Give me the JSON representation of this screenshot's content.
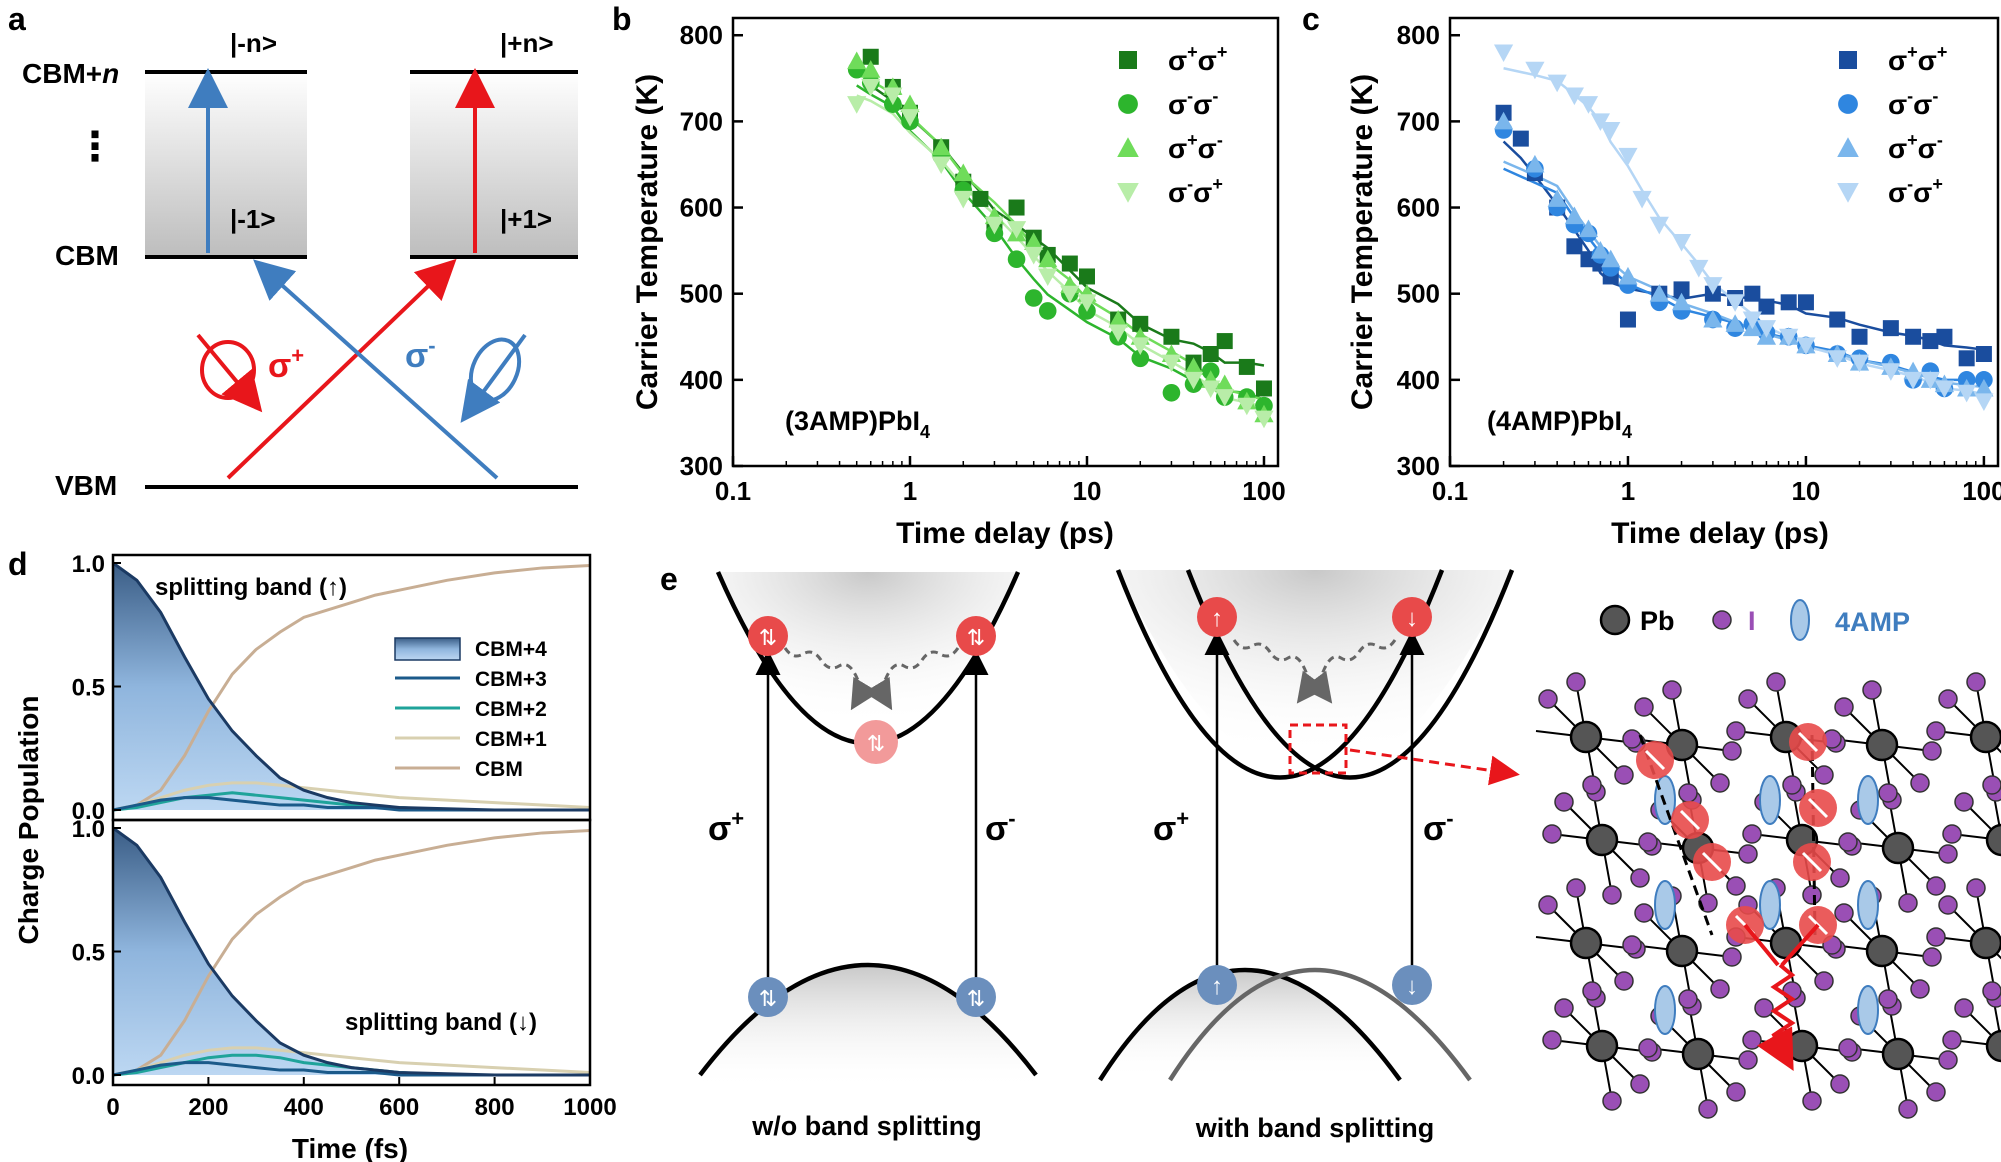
{
  "panel_letters": {
    "a": "a",
    "b": "b",
    "c": "c",
    "d": "d",
    "e": "e"
  },
  "panel_a": {
    "cbm_n_prefix": "CBM+",
    "cbm_n_suffix": "n",
    "cbm": "CBM",
    "vbm": "VBM",
    "dots": "⋮",
    "state_minus_n": "|-n>",
    "state_plus_n": "|+n>",
    "state_minus_1": "|-1>",
    "state_plus_1": "|+1>",
    "sigma_plus_base": "σ",
    "sigma_plus_sup": "+",
    "sigma_minus_base": "σ",
    "sigma_minus_sup": "-",
    "colors": {
      "red": "#e8161b",
      "blue": "#3f7dbf"
    }
  },
  "chart_data": [
    {
      "id": "b",
      "type": "scatter",
      "xscale": "log",
      "xlim": [
        0.1,
        120
      ],
      "ylim": [
        300,
        820
      ],
      "xticks": [
        "0.1",
        "1",
        "10",
        "100"
      ],
      "yticks": [
        "300",
        "400",
        "500",
        "600",
        "700",
        "800"
      ],
      "xlabel": "Time delay (ps)",
      "ylabel": "Carrier Temperature (K)",
      "annotation": {
        "base": "(3AMP)PbI",
        "sub": "4"
      },
      "series": [
        {
          "name": "σ+σ+",
          "label_a": "σ",
          "sup_a": "+",
          "label_b": "σ",
          "sup_b": "+",
          "marker": "square",
          "color": "#1a7a1a",
          "x": [
            0.6,
            0.8,
            1.0,
            1.5,
            2.0,
            2.5,
            3.0,
            4.0,
            5.0,
            6.0,
            8.0,
            10,
            15,
            20,
            30,
            40,
            50,
            60,
            80,
            100
          ],
          "y": [
            775,
            740,
            710,
            670,
            630,
            610,
            580,
            600,
            565,
            545,
            535,
            520,
            470,
            465,
            450,
            420,
            430,
            445,
            415,
            390
          ]
        },
        {
          "name": "σ-σ-",
          "label_a": "σ",
          "sup_a": "-",
          "label_b": "σ",
          "sup_b": "-",
          "marker": "circle",
          "color": "#2db52d",
          "x": [
            0.5,
            0.6,
            0.8,
            1.0,
            1.5,
            2.0,
            3.0,
            4.0,
            5.0,
            6.0,
            8.0,
            10,
            15,
            20,
            30,
            40,
            50,
            60,
            80,
            100
          ],
          "y": [
            760,
            745,
            720,
            700,
            660,
            620,
            570,
            540,
            495,
            480,
            500,
            480,
            450,
            425,
            385,
            395,
            410,
            380,
            380,
            370
          ]
        },
        {
          "name": "σ+σ-",
          "label_a": "σ",
          "sup_a": "+",
          "label_b": "σ",
          "sup_b": "-",
          "marker": "triangle",
          "color": "#6fdc5a",
          "x": [
            0.5,
            0.6,
            0.8,
            1.0,
            1.5,
            2.0,
            3.0,
            4.0,
            5.0,
            6.0,
            8.0,
            10,
            15,
            20,
            30,
            40,
            50,
            60,
            80,
            100
          ],
          "y": [
            770,
            760,
            740,
            720,
            670,
            640,
            590,
            570,
            560,
            540,
            510,
            500,
            470,
            450,
            430,
            415,
            400,
            395,
            375,
            360
          ]
        },
        {
          "name": "σ-σ+",
          "label_a": "σ",
          "sup_a": "-",
          "label_b": "σ",
          "sup_b": "+",
          "marker": "triangle-down",
          "color": "#b8eda8",
          "x": [
            0.5,
            0.6,
            0.8,
            1.0,
            1.5,
            2.0,
            3.0,
            4.0,
            5.0,
            6.0,
            8.0,
            10,
            15,
            20,
            30,
            40,
            50,
            60,
            80,
            100
          ],
          "y": [
            720,
            740,
            730,
            705,
            650,
            610,
            580,
            575,
            545,
            520,
            500,
            490,
            455,
            440,
            420,
            400,
            390,
            380,
            370,
            355
          ]
        }
      ]
    },
    {
      "id": "c",
      "type": "scatter",
      "xscale": "log",
      "xlim": [
        0.1,
        120
      ],
      "ylim": [
        300,
        820
      ],
      "xticks": [
        "0.1",
        "1",
        "10",
        "100"
      ],
      "yticks": [
        "300",
        "400",
        "500",
        "600",
        "700",
        "800"
      ],
      "xlabel": "Time delay (ps)",
      "ylabel": "Carrier Temperature (K)",
      "annotation": {
        "base": "(4AMP)PbI",
        "sub": "4"
      },
      "series": [
        {
          "name": "σ+σ+",
          "label_a": "σ",
          "sup_a": "+",
          "label_b": "σ",
          "sup_b": "+",
          "marker": "square",
          "color": "#1a4d9e",
          "x": [
            0.2,
            0.25,
            0.3,
            0.4,
            0.5,
            0.6,
            0.7,
            0.8,
            1.0,
            1.5,
            2.0,
            3.0,
            4.0,
            5.0,
            6.0,
            8.0,
            10,
            15,
            20,
            30,
            40,
            50,
            60,
            80,
            100
          ],
          "y": [
            710,
            680,
            640,
            600,
            555,
            540,
            535,
            520,
            470,
            500,
            505,
            500,
            495,
            500,
            485,
            490,
            490,
            470,
            450,
            460,
            450,
            445,
            450,
            425,
            430
          ]
        },
        {
          "name": "σ-σ-",
          "label_a": "σ",
          "sup_a": "-",
          "label_b": "σ",
          "sup_b": "-",
          "marker": "circle",
          "color": "#2f86e0",
          "x": [
            0.2,
            0.3,
            0.4,
            0.5,
            0.6,
            0.7,
            0.8,
            1.0,
            1.5,
            2.0,
            3.0,
            4.0,
            5.0,
            6.0,
            8.0,
            10,
            15,
            20,
            30,
            40,
            50,
            60,
            80,
            100
          ],
          "y": [
            690,
            645,
            600,
            580,
            570,
            545,
            530,
            510,
            490,
            480,
            470,
            460,
            465,
            455,
            450,
            440,
            430,
            425,
            420,
            400,
            410,
            390,
            400,
            400
          ]
        },
        {
          "name": "σ+σ-",
          "label_a": "σ",
          "sup_a": "+",
          "label_b": "σ",
          "sup_b": "-",
          "marker": "triangle",
          "color": "#7ab6ec",
          "x": [
            0.2,
            0.3,
            0.4,
            0.5,
            0.6,
            0.7,
            0.8,
            1.0,
            1.5,
            2.0,
            3.0,
            4.0,
            5.0,
            6.0,
            8.0,
            10,
            15,
            20,
            30,
            40,
            50,
            60,
            80,
            100
          ],
          "y": [
            700,
            650,
            610,
            590,
            575,
            550,
            540,
            520,
            500,
            490,
            470,
            465,
            460,
            450,
            450,
            440,
            430,
            420,
            415,
            410,
            400,
            395,
            390,
            390
          ]
        },
        {
          "name": "σ-σ+",
          "label_a": "σ",
          "sup_a": "-",
          "label_b": "σ",
          "sup_b": "+",
          "marker": "triangle-down",
          "color": "#b5d6f5",
          "x": [
            0.2,
            0.3,
            0.4,
            0.5,
            0.6,
            0.7,
            0.8,
            1.0,
            1.2,
            1.5,
            2.0,
            2.5,
            3.0,
            4.0,
            5.0,
            6.0,
            8.0,
            10,
            15,
            20,
            30,
            40,
            50,
            60,
            80,
            100
          ],
          "y": [
            780,
            760,
            745,
            730,
            720,
            700,
            690,
            660,
            610,
            580,
            560,
            530,
            510,
            490,
            470,
            460,
            450,
            440,
            425,
            420,
            410,
            400,
            400,
            390,
            385,
            375
          ]
        }
      ]
    },
    {
      "id": "d",
      "type": "area",
      "xlim": [
        0,
        1000
      ],
      "ylim": [
        0,
        1.0
      ],
      "xticks": [
        "0",
        "200",
        "400",
        "600",
        "800",
        "1000"
      ],
      "yticks": [
        "0.0",
        "0.5",
        "1.0"
      ],
      "xlabel": "Time (fs)",
      "ylabel": "Charge Population",
      "panels": [
        {
          "title": "splitting band (↑)",
          "x": [
            0,
            50,
            100,
            150,
            200,
            250,
            300,
            350,
            400,
            450,
            500,
            550,
            600,
            700,
            800,
            900,
            1000
          ],
          "series": [
            {
              "name": "CBM+4",
              "color": "#1b3a63",
              "values": [
                1.0,
                0.93,
                0.8,
                0.62,
                0.45,
                0.32,
                0.22,
                0.13,
                0.08,
                0.05,
                0.03,
                0.02,
                0.01,
                0.005,
                0.0,
                0.0,
                0.0
              ]
            },
            {
              "name": "CBM+3",
              "color": "#1b5a8a",
              "values": [
                0.0,
                0.02,
                0.04,
                0.05,
                0.05,
                0.04,
                0.03,
                0.02,
                0.02,
                0.01,
                0.01,
                0.01,
                0.0,
                0.0,
                0.0,
                0.0,
                0.0
              ]
            },
            {
              "name": "CBM+2",
              "color": "#1fa39a",
              "values": [
                0.0,
                0.01,
                0.03,
                0.05,
                0.06,
                0.07,
                0.06,
                0.05,
                0.04,
                0.03,
                0.02,
                0.01,
                0.01,
                0.0,
                0.0,
                0.0,
                0.0
              ]
            },
            {
              "name": "CBM+1",
              "color": "#d8d0b0",
              "values": [
                0.0,
                0.02,
                0.05,
                0.08,
                0.1,
                0.11,
                0.11,
                0.1,
                0.09,
                0.08,
                0.07,
                0.06,
                0.05,
                0.04,
                0.03,
                0.02,
                0.01
              ]
            },
            {
              "name": "CBM",
              "color": "#c8ae94",
              "values": [
                0.0,
                0.02,
                0.08,
                0.22,
                0.4,
                0.55,
                0.65,
                0.72,
                0.78,
                0.81,
                0.84,
                0.87,
                0.89,
                0.93,
                0.96,
                0.98,
                0.99
              ]
            }
          ]
        },
        {
          "title": "splitting band (↓)",
          "x": [
            0,
            50,
            100,
            150,
            200,
            250,
            300,
            350,
            400,
            450,
            500,
            550,
            600,
            700,
            800,
            900,
            1000
          ],
          "series": [
            {
              "name": "CBM+4",
              "color": "#1b3a63",
              "values": [
                1.0,
                0.93,
                0.8,
                0.62,
                0.45,
                0.32,
                0.22,
                0.13,
                0.08,
                0.05,
                0.03,
                0.02,
                0.01,
                0.005,
                0.0,
                0.0,
                0.0
              ]
            },
            {
              "name": "CBM+3",
              "color": "#1b5a8a",
              "values": [
                0.0,
                0.02,
                0.04,
                0.05,
                0.05,
                0.04,
                0.03,
                0.02,
                0.02,
                0.01,
                0.01,
                0.01,
                0.0,
                0.0,
                0.0,
                0.0,
                0.0
              ]
            },
            {
              "name": "CBM+2",
              "color": "#1fa39a",
              "values": [
                0.0,
                0.01,
                0.03,
                0.05,
                0.07,
                0.08,
                0.08,
                0.07,
                0.05,
                0.04,
                0.03,
                0.02,
                0.01,
                0.0,
                0.0,
                0.0,
                0.0
              ]
            },
            {
              "name": "CBM+1",
              "color": "#d8d0b0",
              "values": [
                0.0,
                0.02,
                0.05,
                0.08,
                0.1,
                0.11,
                0.11,
                0.1,
                0.09,
                0.08,
                0.07,
                0.06,
                0.05,
                0.04,
                0.03,
                0.02,
                0.01
              ]
            },
            {
              "name": "CBM",
              "color": "#c8ae94",
              "values": [
                0.0,
                0.02,
                0.08,
                0.22,
                0.4,
                0.55,
                0.65,
                0.72,
                0.78,
                0.81,
                0.84,
                0.87,
                0.89,
                0.93,
                0.96,
                0.98,
                0.99
              ]
            }
          ]
        }
      ]
    }
  ],
  "panel_e": {
    "left_caption": "w/o band splitting",
    "right_caption": "with band splitting",
    "sigma_base": "σ",
    "sigma_plus_sup": "+",
    "sigma_minus_sup": "-",
    "legend_pb": "Pb",
    "legend_i": "I",
    "legend_amp": "4AMP",
    "colors": {
      "pb": "#555555",
      "i": "#9a4fb5",
      "amp": "#a9c9e8",
      "spin_up": "#e84a4a",
      "valence": "#6b8fbd"
    }
  }
}
